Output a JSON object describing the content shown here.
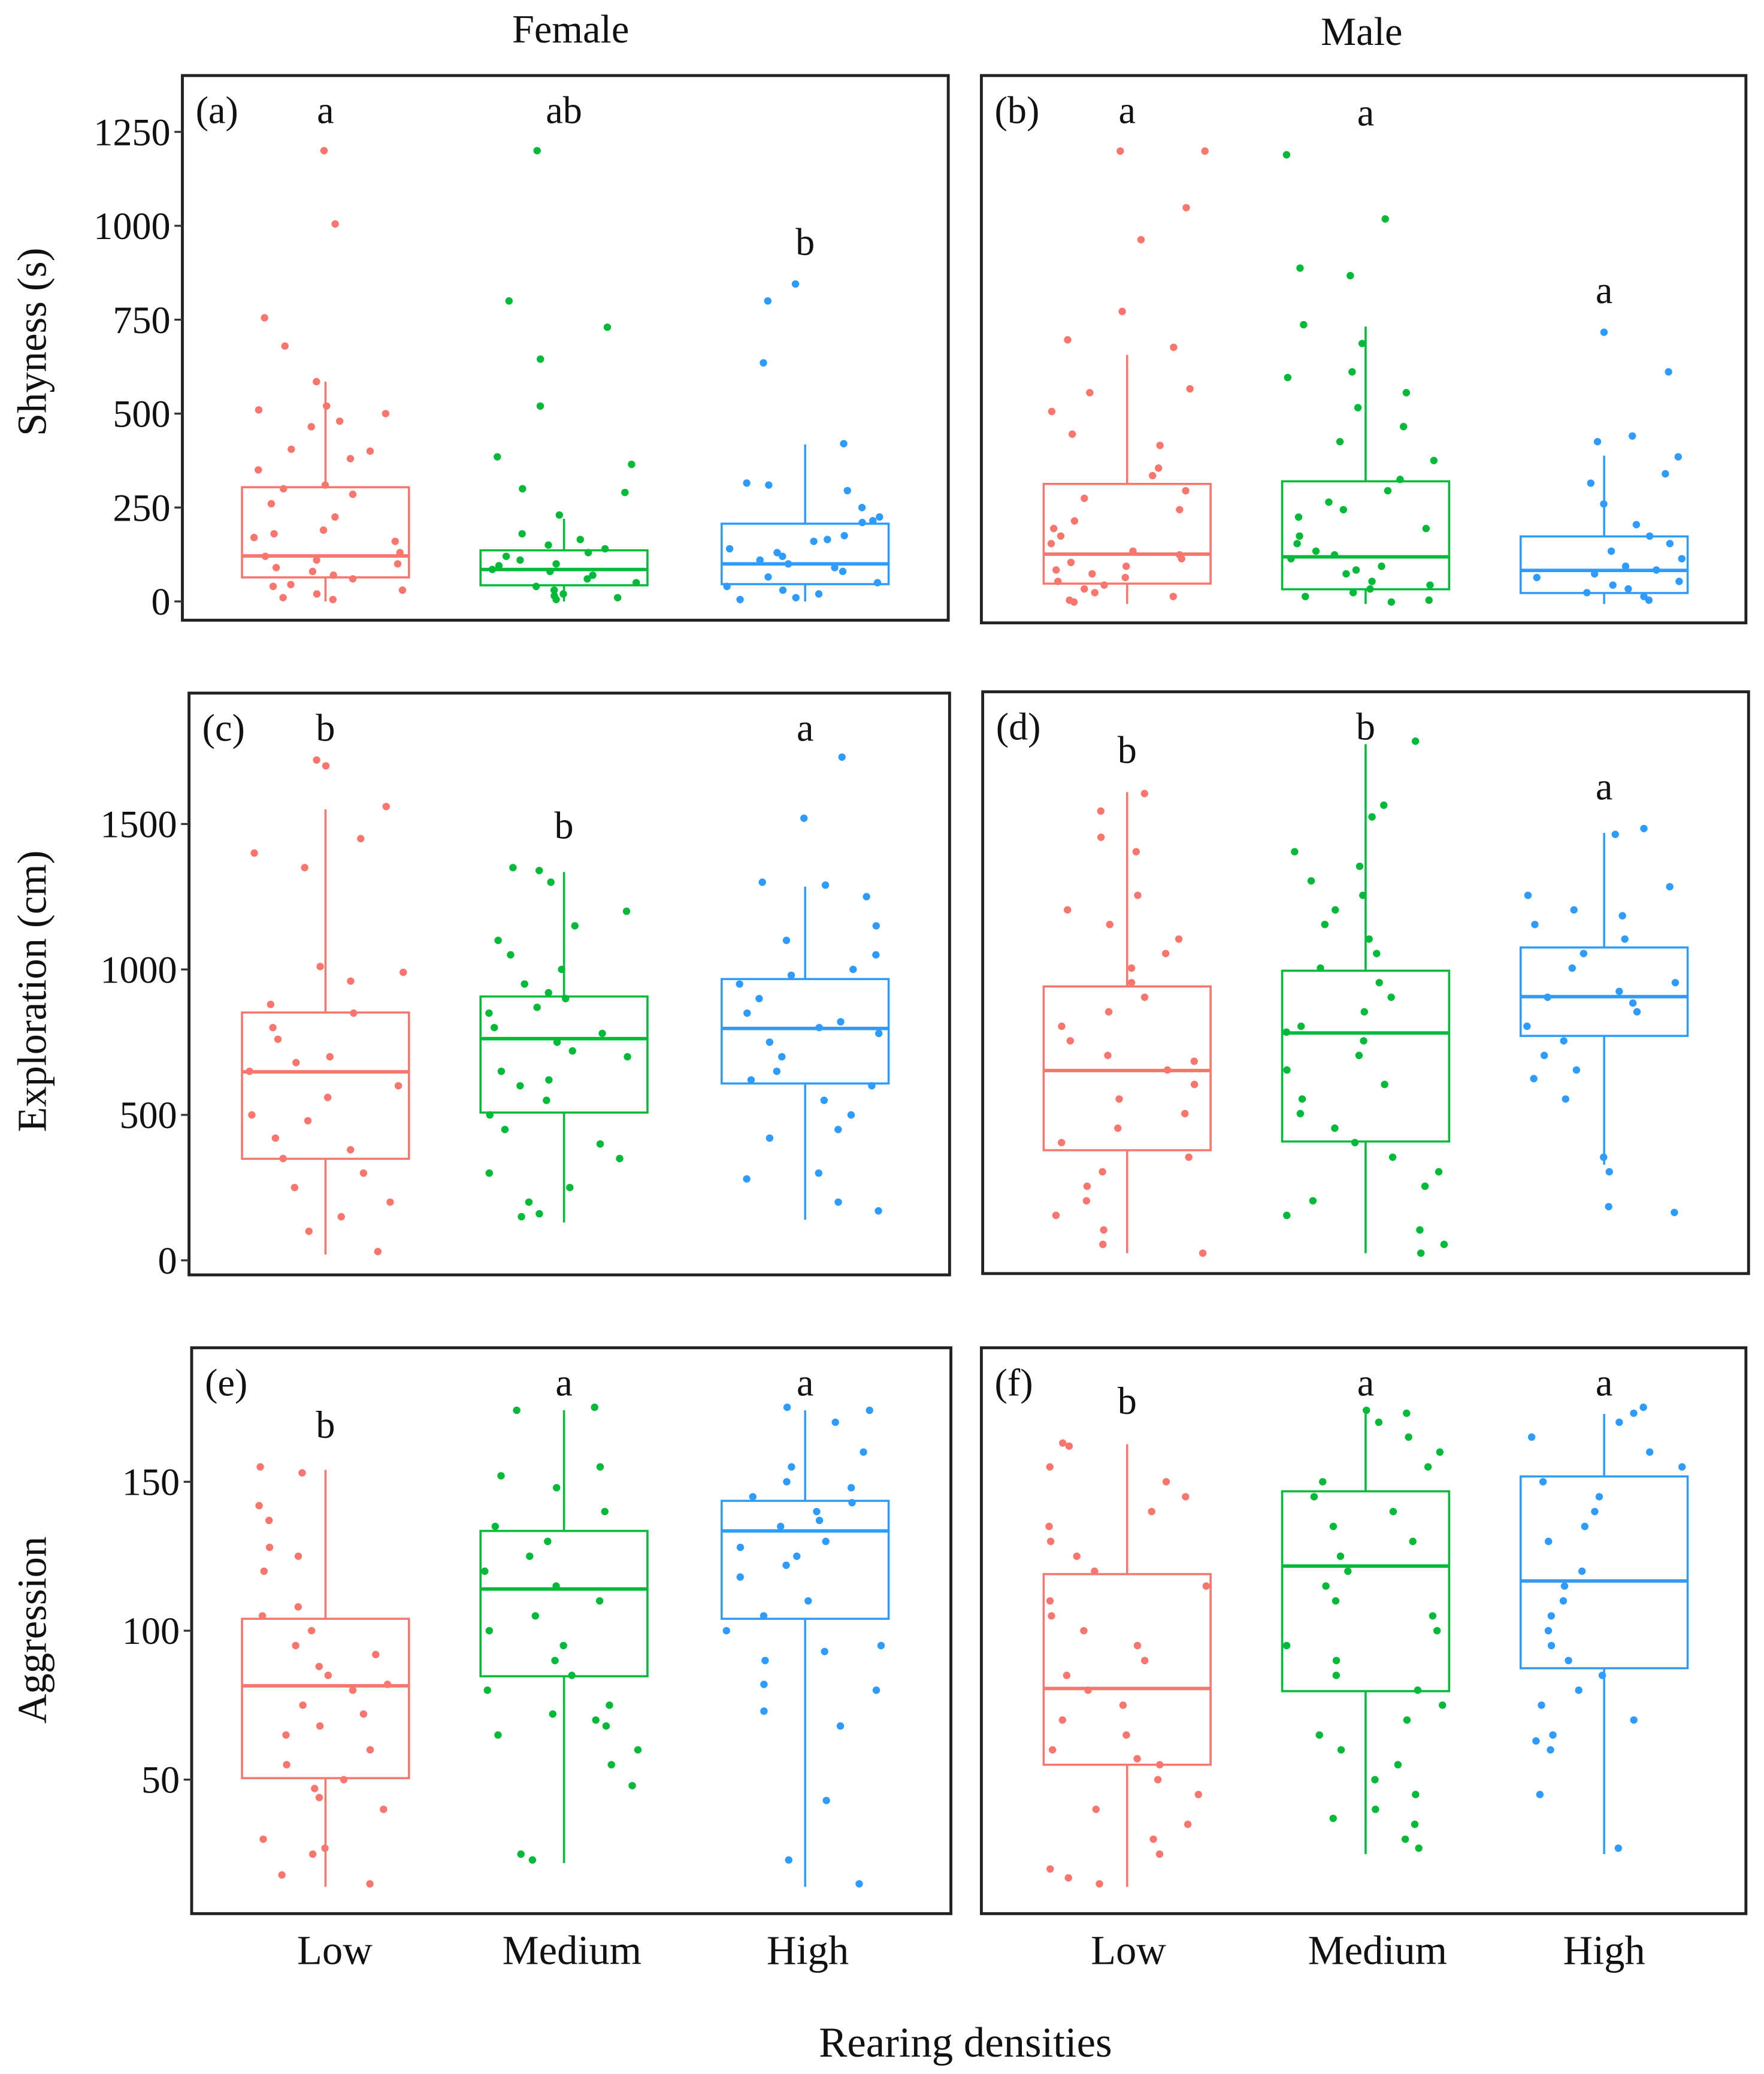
{
  "colors": {
    "Low": "#F8766D",
    "Medium": "#00BA38",
    "High": "#2E9BFF"
  },
  "chart_data": {
    "type": "boxplot-with-jitter",
    "xlabel": "Rearing densities",
    "columns": [
      "Female",
      "Male"
    ],
    "categories": [
      "Low",
      "Medium",
      "High"
    ],
    "rows": [
      {
        "ylabel": "Shyness (s)",
        "ylim": [
          -50,
          1400
        ],
        "yticks": [
          "0",
          "250",
          "500",
          "750",
          "1000",
          "1250"
        ],
        "ytick_values": [
          0,
          250,
          500,
          750,
          1000,
          1250
        ]
      },
      {
        "ylabel": "Exploration (cm)",
        "ylim": [
          -50,
          1950
        ],
        "yticks": [
          "0",
          "500",
          "1000",
          "1500"
        ],
        "ytick_values": [
          0,
          500,
          1000,
          1500
        ]
      },
      {
        "ylabel": "Aggression",
        "ylim": [
          5,
          195
        ],
        "yticks": [
          "50",
          "100",
          "150"
        ],
        "ytick_values": [
          50,
          100,
          150
        ]
      }
    ],
    "panels": [
      {
        "label": "(a)",
        "row": 0,
        "col": 0,
        "letters": [
          "a",
          "ab",
          "b"
        ],
        "boxes": [
          {
            "group": "Low",
            "whisker_low": 0,
            "q1": 64,
            "median": 121,
            "q3": 304,
            "whisker_high": 585,
            "points": [
              1200,
              1005,
              755,
              680,
              585,
              520,
              510,
              500,
              480,
              465,
              405,
              400,
              380,
              350,
              310,
              300,
              285,
              260,
              225,
              190,
              180,
              170,
              160,
              130,
              120,
              110,
              100,
              90,
              80,
              70,
              60,
              45,
              40,
              30,
              20,
              10,
              5
            ]
          },
          {
            "group": "Medium",
            "whisker_low": 0,
            "q1": 43,
            "median": 85,
            "q3": 136,
            "whisker_high": 220,
            "points": [
              1200,
              800,
              730,
              645,
              520,
              385,
              365,
              300,
              290,
              230,
              180,
              165,
              150,
              140,
              130,
              120,
              110,
              100,
              95,
              85,
              80,
              70,
              60,
              50,
              40,
              30,
              20,
              15,
              10,
              5
            ]
          },
          {
            "group": "High",
            "whisker_low": 0,
            "q1": 46,
            "median": 100,
            "q3": 207,
            "whisker_high": 418,
            "points": [
              845,
              800,
              635,
              420,
              315,
              310,
              295,
              250,
              225,
              215,
              210,
              175,
              165,
              160,
              140,
              130,
              120,
              110,
              100,
              90,
              80,
              65,
              50,
              40,
              30,
              20,
              10,
              5
            ]
          }
        ]
      },
      {
        "label": "(b)",
        "row": 0,
        "col": 1,
        "letters": [
          "a",
          "a",
          "a"
        ],
        "boxes": [
          {
            "group": "Low",
            "whisker_low": 0,
            "q1": 54,
            "median": 132,
            "q3": 318,
            "whisker_high": 660,
            "points": [
              1200,
              1200,
              1050,
              965,
              775,
              700,
              680,
              570,
              560,
              510,
              450,
              420,
              360,
              340,
              300,
              280,
              250,
              220,
              200,
              180,
              160,
              140,
              130,
              120,
              110,
              100,
              90,
              80,
              70,
              60,
              50,
              40,
              30,
              20,
              10,
              5
            ]
          },
          {
            "group": "Medium",
            "whisker_low": 0,
            "q1": 39,
            "median": 125,
            "q3": 325,
            "whisker_high": 735,
            "points": [
              1190,
              1020,
              890,
              870,
              740,
              690,
              615,
              600,
              560,
              520,
              470,
              430,
              380,
              330,
              300,
              270,
              250,
              230,
              200,
              180,
              160,
              140,
              130,
              120,
              100,
              90,
              80,
              60,
              50,
              40,
              30,
              20,
              10,
              5
            ]
          },
          {
            "group": "High",
            "whisker_low": 0,
            "q1": 29,
            "median": 89,
            "q3": 179,
            "whisker_high": 393,
            "points": [
              720,
              615,
              445,
              430,
              390,
              345,
              320,
              265,
              210,
              180,
              160,
              140,
              120,
              100,
              90,
              80,
              70,
              60,
              50,
              40,
              30,
              20,
              10
            ]
          }
        ]
      },
      {
        "label": "(c)",
        "row": 1,
        "col": 0,
        "letters": [
          "b",
          "b",
          "a"
        ],
        "boxes": [
          {
            "group": "Low",
            "whisker_low": 20,
            "q1": 349,
            "median": 648,
            "q3": 852,
            "whisker_high": 1550,
            "points": [
              1700,
              1720,
              1560,
              1450,
              1400,
              1350,
              1010,
              990,
              960,
              880,
              850,
              800,
              760,
              700,
              680,
              650,
              600,
              560,
              500,
              480,
              420,
              380,
              350,
              300,
              250,
              200,
              150,
              100,
              30
            ]
          },
          {
            "group": "Medium",
            "whisker_low": 130,
            "q1": 508,
            "median": 762,
            "q3": 907,
            "whisker_high": 1335,
            "points": [
              1350,
              1340,
              1300,
              1200,
              1150,
              1100,
              1050,
              1000,
              950,
              920,
              900,
              870,
              850,
              800,
              780,
              750,
              720,
              700,
              650,
              620,
              600,
              550,
              500,
              450,
              400,
              350,
              300,
              250,
              200,
              160,
              150
            ]
          },
          {
            "group": "High",
            "whisker_low": 140,
            "q1": 608,
            "median": 797,
            "q3": 967,
            "whisker_high": 1285,
            "points": [
              1730,
              1520,
              1300,
              1290,
              1250,
              1150,
              1100,
              1050,
              1000,
              980,
              950,
              900,
              850,
              820,
              800,
              780,
              750,
              700,
              650,
              620,
              600,
              550,
              500,
              450,
              420,
              300,
              280,
              200,
              170
            ]
          }
        ]
      },
      {
        "label": "(d)",
        "row": 1,
        "col": 1,
        "letters": [
          "b",
          "b",
          "a"
        ],
        "boxes": [
          {
            "group": "Low",
            "whisker_low": 20,
            "q1": 374,
            "median": 648,
            "q3": 937,
            "whisker_high": 1605,
            "points": [
              1600,
              1540,
              1450,
              1400,
              1250,
              1200,
              1150,
              1100,
              1050,
              1000,
              950,
              900,
              850,
              800,
              750,
              700,
              680,
              650,
              600,
              550,
              500,
              450,
              400,
              350,
              300,
              250,
              200,
              150,
              100,
              50,
              20
            ]
          },
          {
            "group": "Medium",
            "whisker_low": 20,
            "q1": 404,
            "median": 777,
            "q3": 991,
            "whisker_high": 1770,
            "points": [
              1780,
              1560,
              1520,
              1400,
              1350,
              1300,
              1250,
              1200,
              1150,
              1100,
              1050,
              1000,
              950,
              900,
              850,
              800,
              780,
              750,
              700,
              650,
              600,
              550,
              500,
              450,
              400,
              350,
              300,
              250,
              200,
              150,
              100,
              50,
              20
            ]
          },
          {
            "group": "High",
            "whisker_low": 324,
            "q1": 767,
            "median": 902,
            "q3": 1071,
            "whisker_high": 1465,
            "points": [
              1480,
              1460,
              1280,
              1250,
              1200,
              1180,
              1150,
              1100,
              1050,
              1000,
              950,
              920,
              900,
              880,
              850,
              800,
              750,
              700,
              650,
              620,
              550,
              350,
              300,
              180,
              160
            ]
          }
        ]
      },
      {
        "label": "(e)",
        "row": 2,
        "col": 0,
        "letters": [
          "b",
          "a",
          "a"
        ],
        "boxes": [
          {
            "group": "Low",
            "whisker_low": 14,
            "q1": 50.5,
            "median": 81.5,
            "q3": 104,
            "whisker_high": 154,
            "points": [
              155,
              153,
              142,
              137,
              128,
              125,
              120,
              108,
              105,
              100,
              95,
              92,
              88,
              85,
              82,
              80,
              75,
              72,
              68,
              65,
              60,
              55,
              50,
              47,
              44,
              40,
              30,
              27,
              25,
              18,
              15
            ]
          },
          {
            "group": "Medium",
            "whisker_low": 22,
            "q1": 84.7,
            "median": 114,
            "q3": 133.5,
            "whisker_high": 174,
            "points": [
              175,
              174,
              155,
              152,
              148,
              140,
              135,
              130,
              125,
              120,
              115,
              110,
              105,
              100,
              95,
              90,
              85,
              80,
              75,
              72,
              70,
              68,
              65,
              60,
              55,
              48,
              25,
              23
            ]
          },
          {
            "group": "High",
            "whisker_low": 14,
            "q1": 104,
            "median": 133.5,
            "q3": 143.6,
            "whisker_high": 174,
            "points": [
              175,
              174,
              170,
              160,
              155,
              150,
              148,
              145,
              143,
              140,
              137,
              135,
              130,
              128,
              125,
              122,
              118,
              110,
              105,
              100,
              95,
              93,
              90,
              82,
              80,
              73,
              68,
              43,
              23,
              15
            ]
          }
        ]
      },
      {
        "label": "(f)",
        "row": 2,
        "col": 1,
        "letters": [
          "b",
          "a",
          "a"
        ],
        "boxes": [
          {
            "group": "Low",
            "whisker_low": 14,
            "q1": 55,
            "median": 80.6,
            "q3": 119,
            "whisker_high": 162.6,
            "points": [
              163,
              162,
              155,
              150,
              145,
              140,
              135,
              130,
              125,
              120,
              115,
              110,
              105,
              100,
              95,
              90,
              85,
              80,
              75,
              70,
              65,
              60,
              57,
              55,
              50,
              45,
              40,
              35,
              30,
              25,
              20,
              17,
              15
            ]
          },
          {
            "group": "Medium",
            "whisker_low": 25,
            "q1": 79.7,
            "median": 121.7,
            "q3": 146.8,
            "whisker_high": 172.8,
            "points": [
              174,
              173,
              170,
              165,
              160,
              155,
              150,
              145,
              140,
              135,
              130,
              125,
              120,
              115,
              110,
              105,
              100,
              95,
              90,
              85,
              80,
              75,
              70,
              65,
              60,
              55,
              50,
              45,
              40,
              37,
              35,
              30,
              27
            ]
          },
          {
            "group": "High",
            "whisker_low": 25,
            "q1": 87.4,
            "median": 116.7,
            "q3": 151.8,
            "whisker_high": 172.8,
            "points": [
              175,
              173,
              170,
              165,
              160,
              155,
              150,
              145,
              140,
              135,
              130,
              120,
              115,
              110,
              105,
              100,
              95,
              90,
              85,
              80,
              75,
              70,
              65,
              63,
              60,
              45,
              27
            ]
          }
        ]
      }
    ]
  }
}
